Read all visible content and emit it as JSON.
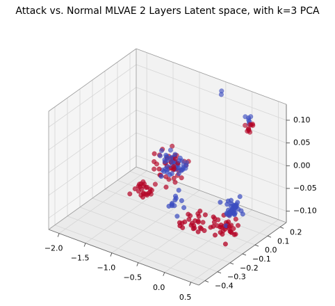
{
  "chart_data": {
    "type": "scatter",
    "title": "Attack vs. Normal MLVAE 2 Layers Latent space, with k=3 PCA",
    "projection": "3d",
    "grid": true,
    "legend": "none",
    "xlabel": "",
    "ylabel": "",
    "zlabel": "",
    "x_ticks": [
      "−2.0",
      "−1.5",
      "−1.0",
      "−0.5",
      "0.0",
      "0.5"
    ],
    "y_ticks": [
      "−0.4",
      "−0.3",
      "−0.2",
      "−0.1",
      "0.0",
      "0.1",
      "0.2"
    ],
    "z_ticks": [
      "−0.10",
      "−0.05",
      "0.00",
      "0.05",
      "0.10"
    ],
    "series_colors": {
      "attack": "#b40426",
      "normal": "#3b4cc0"
    },
    "clusters": [
      {
        "color": "#3b4cc0",
        "x": -1.05,
        "y": 0.06,
        "z": -0.03,
        "sx": 0.12,
        "sy": 0.03,
        "sz": 0.012,
        "n": 45
      },
      {
        "color": "#b40426",
        "x": -1.1,
        "y": 0.05,
        "z": -0.04,
        "sx": 0.15,
        "sy": 0.04,
        "sz": 0.015,
        "n": 40
      },
      {
        "color": "#b40426",
        "x": -1.45,
        "y": 0.0,
        "z": -0.09,
        "sx": 0.1,
        "sy": 0.03,
        "sz": 0.01,
        "n": 25
      },
      {
        "color": "#3b4cc0",
        "x": -0.75,
        "y": -0.05,
        "z": -0.08,
        "sx": 0.1,
        "sy": 0.03,
        "sz": 0.01,
        "n": 12
      },
      {
        "color": "#b40426",
        "x": -0.25,
        "y": -0.1,
        "z": -0.1,
        "sx": 0.12,
        "sy": 0.03,
        "sz": 0.01,
        "n": 25
      },
      {
        "color": "#3b4cc0",
        "x": 0.35,
        "y": -0.05,
        "z": -0.05,
        "sx": 0.05,
        "sy": 0.02,
        "sz": 0.01,
        "n": 40
      },
      {
        "color": "#b40426",
        "x": 0.25,
        "y": -0.07,
        "z": -0.09,
        "sx": 0.1,
        "sy": 0.03,
        "sz": 0.01,
        "n": 35
      },
      {
        "color": "#b40426",
        "x": 0.3,
        "y": 0.1,
        "z": 0.1,
        "sx": 0.03,
        "sy": 0.02,
        "sz": 0.008,
        "n": 10
      },
      {
        "color": "#3b4cc0",
        "x": 0.25,
        "y": 0.12,
        "z": 0.11,
        "sx": 0.04,
        "sy": 0.02,
        "sz": 0.008,
        "n": 6
      },
      {
        "color": "#3b4cc0",
        "x": -0.3,
        "y": 0.15,
        "z": 0.14,
        "sx": 0.02,
        "sy": 0.01,
        "sz": 0.005,
        "n": 2
      }
    ]
  }
}
